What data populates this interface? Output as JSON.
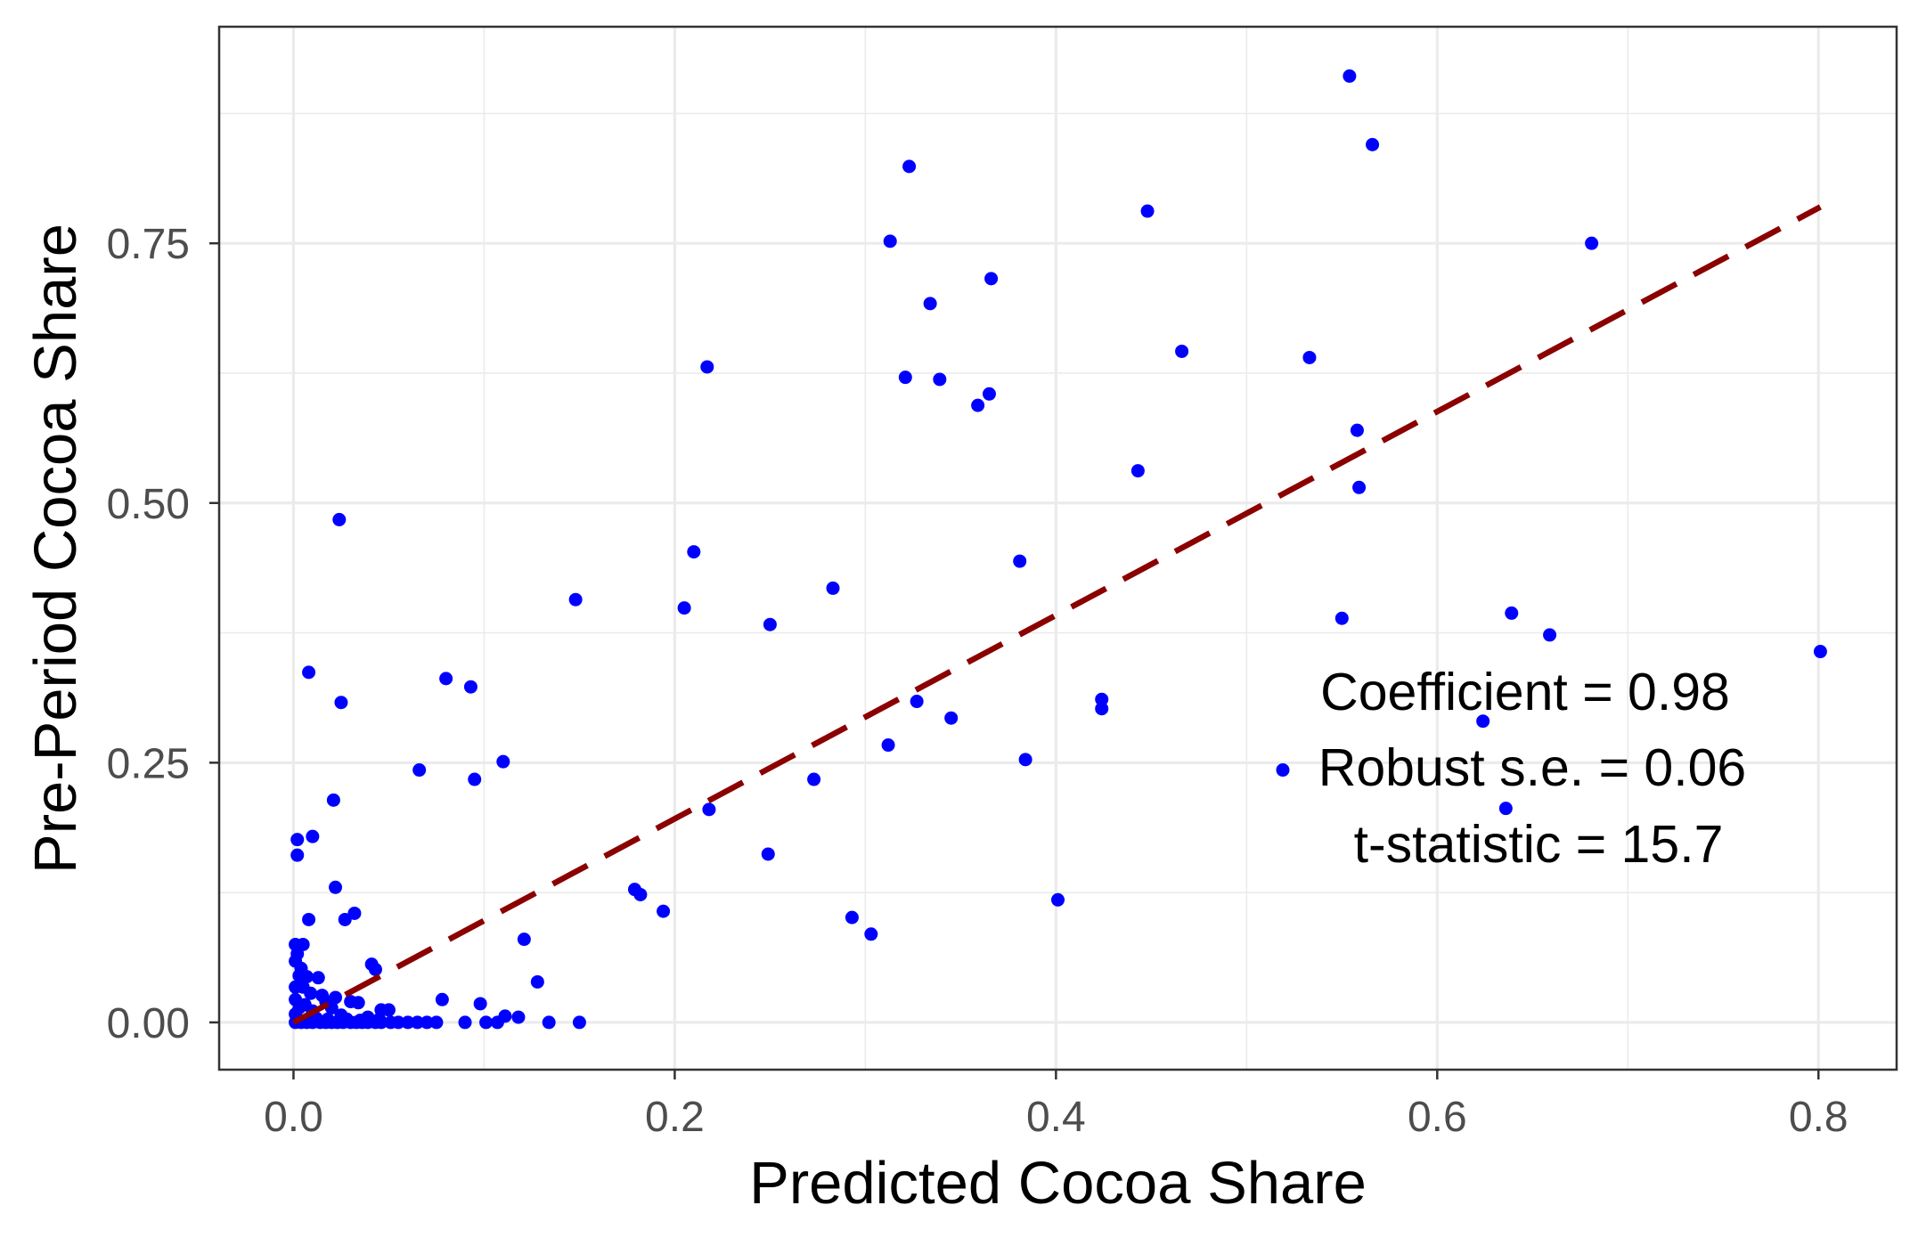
{
  "chart_data": {
    "type": "scatter",
    "xlabel": "Predicted Cocoa Share",
    "ylabel": "Pre-Period Cocoa Share",
    "xlim": [
      -0.039,
      0.841
    ],
    "ylim": [
      -0.0455,
      0.9585
    ],
    "x_scale": "linear",
    "y_scale": "linear",
    "x_ticks": [
      0.0,
      0.2,
      0.4,
      0.6,
      0.8
    ],
    "x_tick_labels": [
      "0.0",
      "0.2",
      "0.4",
      "0.6",
      "0.8"
    ],
    "y_ticks": [
      0.0,
      0.25,
      0.5,
      0.75
    ],
    "y_tick_labels": [
      "0.00",
      "0.25",
      "0.50",
      "0.75"
    ],
    "x_minor_ticks": [
      0.1,
      0.3,
      0.5,
      0.7
    ],
    "y_minor_ticks": [
      0.125,
      0.375,
      0.625,
      0.875
    ],
    "grid": true,
    "legend": "none",
    "series": [
      {
        "color": "#0000FF",
        "x": [
          0.554,
          0.566,
          0.323,
          0.448,
          0.313,
          0.681,
          0.366,
          0.334,
          0.466,
          0.533,
          0.217,
          0.321,
          0.339,
          0.365,
          0.359,
          0.558,
          0.443,
          0.559,
          0.024,
          0.21,
          0.381,
          0.283,
          0.148,
          0.205,
          0.639,
          0.55,
          0.25,
          0.659,
          0.801,
          0.008,
          0.08,
          0.093,
          0.025,
          0.424,
          0.327,
          0.424,
          0.345,
          0.624,
          0.312,
          0.384,
          0.11,
          0.519,
          0.066,
          0.095,
          0.273,
          0.021,
          0.636,
          0.218,
          0.002,
          0.01,
          0.002,
          0.249,
          0.022,
          0.179,
          0.182,
          0.401,
          0.032,
          0.194,
          0.008,
          0.027,
          0.293,
          0.303,
          0.121,
          0.001,
          0.005,
          0.001,
          0.041,
          0.043,
          0.128,
          0.007,
          0.013,
          0.001,
          0.005,
          0.078,
          0.098,
          0.015,
          0.03,
          0.05,
          0.111,
          0.118,
          0.001,
          0.003,
          0.006,
          0.01,
          0.017,
          0.02,
          0.025,
          0.034,
          0.039,
          0.001,
          0.003,
          0.002,
          0.001,
          0.004,
          0.007,
          0.01,
          0.014,
          0.017,
          0.02,
          0.023,
          0.026,
          0.03,
          0.033,
          0.036,
          0.039,
          0.043,
          0.046,
          0.051,
          0.055,
          0.06,
          0.065,
          0.07,
          0.075,
          0.09,
          0.101,
          0.107,
          0.134,
          0.15,
          0.018,
          0.028,
          0.012,
          0.035,
          0.045,
          0.022,
          0.009,
          0.004,
          0.002,
          0.046
        ],
        "y": [
          0.911,
          0.845,
          0.824,
          0.781,
          0.752,
          0.75,
          0.716,
          0.692,
          0.646,
          0.64,
          0.631,
          0.621,
          0.619,
          0.605,
          0.594,
          0.57,
          0.531,
          0.515,
          0.484,
          0.453,
          0.444,
          0.418,
          0.407,
          0.399,
          0.394,
          0.389,
          0.383,
          0.373,
          0.357,
          0.337,
          0.331,
          0.323,
          0.308,
          0.311,
          0.309,
          0.302,
          0.293,
          0.29,
          0.267,
          0.253,
          0.251,
          0.243,
          0.243,
          0.234,
          0.234,
          0.214,
          0.206,
          0.205,
          0.176,
          0.179,
          0.161,
          0.162,
          0.13,
          0.128,
          0.123,
          0.118,
          0.105,
          0.107,
          0.099,
          0.099,
          0.101,
          0.085,
          0.08,
          0.075,
          0.075,
          0.059,
          0.056,
          0.051,
          0.039,
          0.044,
          0.043,
          0.034,
          0.034,
          0.022,
          0.018,
          0.026,
          0.02,
          0.012,
          0.006,
          0.005,
          0.008,
          0.014,
          0.017,
          0.011,
          0.02,
          0.014,
          0.007,
          0.019,
          0.005,
          0.022,
          0.045,
          0.003,
          0,
          0,
          0,
          0,
          0,
          0,
          0,
          0,
          0,
          0,
          0,
          0,
          0,
          0,
          0,
          0,
          0,
          0,
          0,
          0,
          0,
          0,
          0,
          0,
          0,
          0,
          0.003,
          0.003,
          0.004,
          0.002,
          0.003,
          0.024,
          0.028,
          0.052,
          0.066,
          0.012
        ]
      }
    ],
    "fit_line": {
      "slope": 0.98,
      "intercept": 0.0,
      "x_range": [
        0.0,
        0.801
      ],
      "style": "dashed",
      "color": "#8B0000"
    },
    "annotations": [
      "Coefficient = 0.98",
      "Robust s.e. = 0.06",
      "t-statistic = 15.7"
    ]
  }
}
